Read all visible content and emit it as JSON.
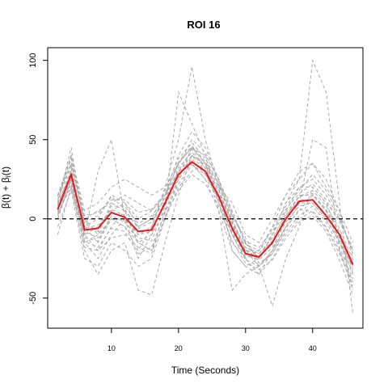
{
  "chart_data": {
    "type": "line",
    "title": "ROI 16",
    "xlabel": "Time (Seconds)",
    "ylabel_main": "β(t) + β",
    "ylabel_sub": "i",
    "ylabel_tail": "(t)",
    "xlim": [
      0.5,
      47.5
    ],
    "ylim": [
      -69,
      108
    ],
    "xticks": [
      10,
      20,
      30,
      40
    ],
    "xtick_labels": [
      "10",
      "20",
      "30",
      "40"
    ],
    "yticks": [
      -50,
      0,
      50,
      100
    ],
    "ytick_labels": [
      "-50",
      "0",
      "50",
      "100"
    ],
    "reference_line": {
      "y": 0,
      "style": "dashed",
      "color": "#000000"
    },
    "x": [
      2,
      4,
      6,
      8,
      10,
      12,
      14,
      16,
      18,
      20,
      22,
      24,
      26,
      28,
      30,
      32,
      34,
      36,
      38,
      40,
      42,
      44,
      46
    ],
    "mean_series": {
      "color": "#e41a1c",
      "values": [
        6,
        28,
        -7,
        -6,
        4,
        1,
        -8,
        -7,
        10,
        28,
        36,
        30,
        14,
        -6,
        -22,
        -24,
        -15,
        0,
        11,
        12,
        2,
        -10,
        -29
      ]
    },
    "individual_series_color": "#aaaaaa",
    "individual_series": [
      {
        "values": [
          10,
          40,
          -5,
          -15,
          0,
          -5,
          -20,
          -5,
          20,
          50,
          96,
          50,
          20,
          -20,
          -30,
          -25,
          -10,
          10,
          25,
          100,
          80,
          10,
          -60
        ]
      },
      {
        "values": [
          0,
          30,
          -10,
          30,
          50,
          0,
          -25,
          -10,
          5,
          80,
          60,
          40,
          10,
          -10,
          -25,
          -35,
          -20,
          0,
          10,
          50,
          45,
          -20,
          -45
        ]
      },
      {
        "values": [
          15,
          35,
          0,
          -10,
          10,
          5,
          -15,
          -20,
          0,
          20,
          30,
          35,
          20,
          0,
          -20,
          -20,
          -10,
          10,
          20,
          20,
          10,
          0,
          -20
        ]
      },
      {
        "values": [
          5,
          25,
          -15,
          -25,
          -10,
          0,
          -10,
          -5,
          15,
          35,
          45,
          40,
          25,
          -5,
          -15,
          -30,
          -20,
          -5,
          5,
          15,
          5,
          -15,
          -35
        ]
      },
      {
        "values": [
          10,
          45,
          -5,
          0,
          15,
          10,
          -5,
          0,
          10,
          30,
          40,
          30,
          10,
          -15,
          -25,
          -20,
          -5,
          15,
          30,
          35,
          20,
          5,
          -25
        ]
      },
      {
        "values": [
          -10,
          20,
          -20,
          -35,
          -20,
          -15,
          -45,
          -48,
          -15,
          15,
          40,
          35,
          5,
          -45,
          -35,
          -30,
          -55,
          -25,
          -5,
          20,
          10,
          -10,
          -45
        ]
      },
      {
        "values": [
          5,
          30,
          -10,
          -5,
          5,
          10,
          0,
          5,
          15,
          30,
          35,
          25,
          15,
          0,
          -20,
          -25,
          -15,
          0,
          15,
          15,
          5,
          -10,
          -30
        ]
      },
      {
        "values": [
          0,
          25,
          -15,
          -10,
          0,
          0,
          -15,
          -20,
          5,
          25,
          45,
          35,
          15,
          -10,
          -20,
          -30,
          -20,
          -5,
          10,
          10,
          0,
          -15,
          -30
        ]
      },
      {
        "values": [
          12,
          35,
          0,
          5,
          10,
          15,
          10,
          5,
          15,
          40,
          55,
          45,
          25,
          5,
          -15,
          -25,
          -10,
          5,
          20,
          25,
          15,
          0,
          -20
        ]
      },
      {
        "values": [
          8,
          32,
          -8,
          -12,
          0,
          -5,
          -15,
          -10,
          12,
          32,
          42,
          32,
          18,
          -2,
          -18,
          -22,
          -12,
          2,
          12,
          12,
          2,
          -12,
          -32
        ]
      },
      {
        "values": [
          3,
          22,
          -18,
          -20,
          -5,
          5,
          -5,
          0,
          18,
          38,
          48,
          38,
          22,
          2,
          -12,
          -28,
          -22,
          -8,
          2,
          8,
          -2,
          -18,
          -38
        ]
      },
      {
        "values": [
          15,
          40,
          5,
          10,
          20,
          25,
          20,
          15,
          20,
          35,
          45,
          35,
          20,
          10,
          -10,
          -15,
          0,
          15,
          25,
          35,
          25,
          5,
          -15
        ]
      },
      {
        "values": [
          -5,
          18,
          -25,
          -30,
          -15,
          -20,
          -30,
          -25,
          0,
          25,
          35,
          25,
          5,
          -20,
          -30,
          -35,
          -25,
          -10,
          0,
          5,
          -5,
          -20,
          -40
        ]
      },
      {
        "values": [
          10,
          28,
          -3,
          -8,
          8,
          8,
          -3,
          2,
          12,
          28,
          38,
          28,
          16,
          -3,
          -20,
          -22,
          -14,
          4,
          14,
          18,
          8,
          -6,
          -26
        ]
      },
      {
        "values": [
          6,
          26,
          -12,
          -14,
          2,
          -2,
          -12,
          -14,
          8,
          26,
          40,
          34,
          18,
          -4,
          -22,
          -26,
          -18,
          -2,
          8,
          10,
          0,
          -14,
          -34
        ]
      },
      {
        "values": [
          14,
          38,
          2,
          4,
          12,
          12,
          4,
          6,
          16,
          34,
          50,
          42,
          24,
          4,
          -16,
          -20,
          -6,
          8,
          18,
          28,
          18,
          2,
          -22
        ]
      },
      {
        "values": [
          2,
          24,
          -14,
          -18,
          -6,
          -8,
          -22,
          -18,
          4,
          22,
          34,
          28,
          12,
          -10,
          -26,
          -30,
          -22,
          -6,
          6,
          4,
          -6,
          -22,
          -42
        ]
      },
      {
        "values": [
          9,
          30,
          -6,
          -4,
          6,
          2,
          -10,
          -8,
          10,
          30,
          44,
          32,
          14,
          -8,
          -24,
          -24,
          -16,
          2,
          14,
          16,
          6,
          -8,
          -28
        ]
      },
      {
        "values": [
          4,
          20,
          -10,
          -20,
          -12,
          -10,
          -18,
          -22,
          2,
          18,
          28,
          22,
          8,
          -14,
          -28,
          -32,
          -26,
          -12,
          -2,
          2,
          -8,
          -26,
          -48
        ]
      },
      {
        "values": [
          12,
          34,
          -2,
          2,
          14,
          6,
          -6,
          -2,
          14,
          36,
          46,
          36,
          22,
          2,
          -14,
          -18,
          -8,
          6,
          16,
          22,
          12,
          -2,
          -18
        ]
      }
    ]
  }
}
